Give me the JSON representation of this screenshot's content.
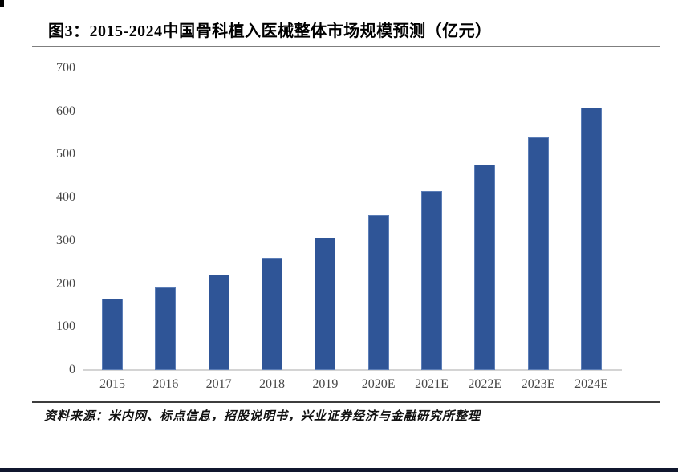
{
  "title": "图3：2015-2024中国骨科植入医械整体市场规模预测（亿元）",
  "source_note": "资料来源：米内网、标点信息，招股说明书，兴业证券经济与金融研究所整理",
  "colors": {
    "bar": "#2F5597",
    "axis_label": "#474747",
    "axis_line": "#d4d4d4",
    "title_rule": "#7f7f7f",
    "source_rule": "#3d3d3d",
    "bottom_bar": "#10172e"
  },
  "chart_data": {
    "type": "bar",
    "categories": [
      "2015",
      "2016",
      "2017",
      "2018",
      "2019",
      "2020E",
      "2021E",
      "2022E",
      "2023E",
      "2024E"
    ],
    "values": [
      165,
      192,
      222,
      258,
      308,
      360,
      416,
      476,
      540,
      608
    ],
    "title": "图3：2015-2024中国骨科植入医械整体市场规模预测（亿元）",
    "xlabel": "",
    "ylabel": "",
    "ylim": [
      0,
      700
    ],
    "yticks": [
      0,
      100,
      200,
      300,
      400,
      500,
      600,
      700
    ],
    "grid": false,
    "legend": false,
    "bar_color": "#2F5597"
  }
}
